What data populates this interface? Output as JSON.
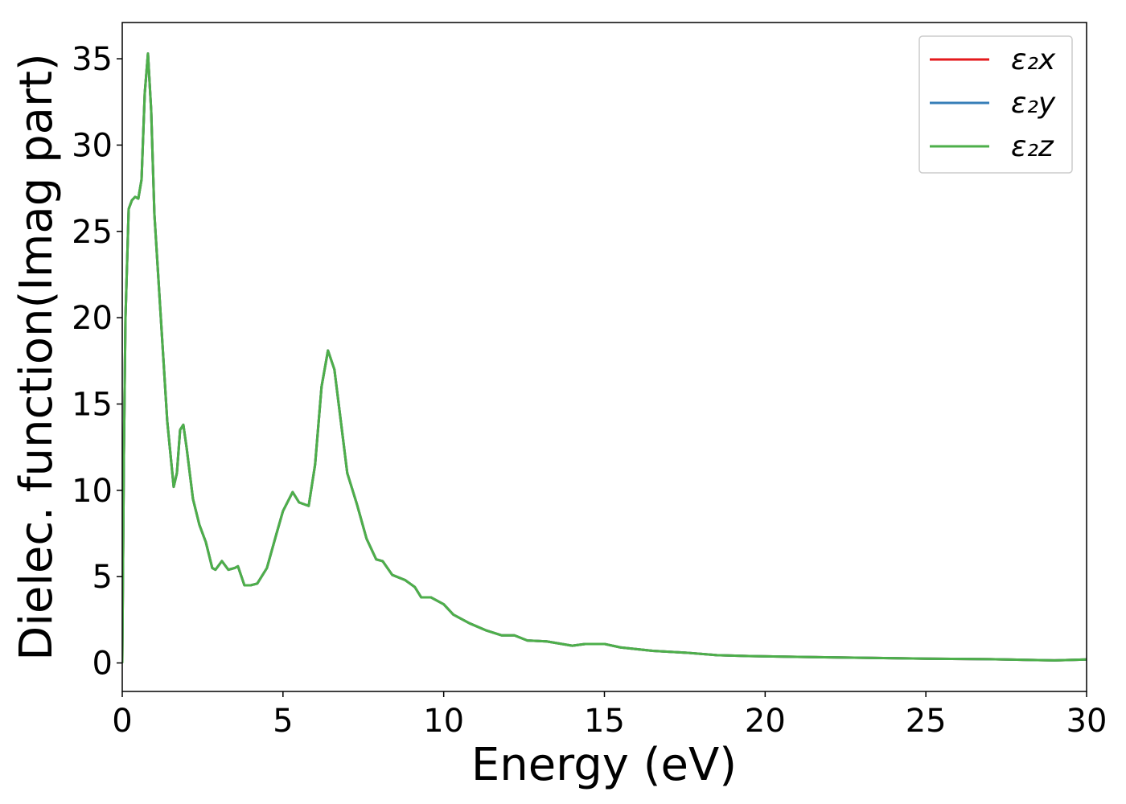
{
  "chart_data": {
    "type": "line",
    "x_label": "Energy (eV)",
    "y_label": "Dielec. function(Imag part)",
    "x": [
      0,
      0.05,
      0.1,
      0.2,
      0.3,
      0.4,
      0.5,
      0.6,
      0.7,
      0.8,
      0.9,
      1.0,
      1.2,
      1.4,
      1.6,
      1.7,
      1.8,
      1.9,
      2.0,
      2.2,
      2.4,
      2.6,
      2.8,
      2.9,
      3.1,
      3.3,
      3.5,
      3.6,
      3.8,
      4.0,
      4.2,
      4.5,
      4.8,
      5.0,
      5.3,
      5.5,
      5.8,
      6.0,
      6.2,
      6.4,
      6.6,
      6.8,
      7.0,
      7.3,
      7.6,
      7.9,
      8.1,
      8.4,
      8.8,
      9.1,
      9.3,
      9.6,
      10.0,
      10.3,
      10.8,
      11.3,
      11.8,
      12.2,
      12.6,
      13.2,
      14.0,
      14.4,
      15.0,
      15.5,
      16.5,
      17.5,
      18.5,
      19.5,
      21,
      23,
      25,
      27,
      29,
      30
    ],
    "series": [
      {
        "name": "ε₂x",
        "color": "#e41a1c",
        "values": [
          0,
          12,
          20,
          26.3,
          26.8,
          27,
          26.9,
          28,
          33,
          35.3,
          32,
          26,
          20,
          14,
          10.2,
          11,
          13.5,
          13.8,
          12.5,
          9.5,
          8,
          7,
          5.5,
          5.4,
          5.9,
          5.4,
          5.5,
          5.6,
          4.5,
          4.5,
          4.6,
          5.5,
          7.5,
          8.8,
          9.9,
          9.3,
          9.1,
          11.5,
          16,
          18.1,
          17,
          14,
          11,
          9.2,
          7.2,
          6,
          5.9,
          5.1,
          4.8,
          4.4,
          3.8,
          3.8,
          3.4,
          2.8,
          2.3,
          1.9,
          1.6,
          1.6,
          1.3,
          1.25,
          1.0,
          1.1,
          1.1,
          0.9,
          0.7,
          0.6,
          0.45,
          0.4,
          0.35,
          0.3,
          0.25,
          0.22,
          0.15,
          0.2
        ]
      },
      {
        "name": "ε₂y",
        "color": "#377eb8",
        "values": [
          0,
          12,
          20,
          26.3,
          26.8,
          27,
          26.9,
          28,
          33,
          35.3,
          32,
          26,
          20,
          14,
          10.2,
          11,
          13.5,
          13.8,
          12.5,
          9.5,
          8,
          7,
          5.5,
          5.4,
          5.9,
          5.4,
          5.5,
          5.6,
          4.5,
          4.5,
          4.6,
          5.5,
          7.5,
          8.8,
          9.9,
          9.3,
          9.1,
          11.5,
          16,
          18.1,
          17,
          14,
          11,
          9.2,
          7.2,
          6,
          5.9,
          5.1,
          4.8,
          4.4,
          3.8,
          3.8,
          3.4,
          2.8,
          2.3,
          1.9,
          1.6,
          1.6,
          1.3,
          1.25,
          1.0,
          1.1,
          1.1,
          0.9,
          0.7,
          0.6,
          0.45,
          0.4,
          0.35,
          0.3,
          0.25,
          0.22,
          0.15,
          0.2
        ]
      },
      {
        "name": "ε₂z",
        "color": "#4daf4a",
        "values": [
          0,
          12,
          20,
          26.3,
          26.8,
          27,
          26.9,
          28,
          33,
          35.3,
          32,
          26,
          20,
          14,
          10.2,
          11,
          13.5,
          13.8,
          12.5,
          9.5,
          8,
          7,
          5.5,
          5.4,
          5.9,
          5.4,
          5.5,
          5.6,
          4.5,
          4.5,
          4.6,
          5.5,
          7.5,
          8.8,
          9.9,
          9.3,
          9.1,
          11.5,
          16,
          18.1,
          17,
          14,
          11,
          9.2,
          7.2,
          6,
          5.9,
          5.1,
          4.8,
          4.4,
          3.8,
          3.8,
          3.4,
          2.8,
          2.3,
          1.9,
          1.6,
          1.6,
          1.3,
          1.25,
          1.0,
          1.1,
          1.1,
          0.9,
          0.7,
          0.6,
          0.45,
          0.4,
          0.35,
          0.3,
          0.25,
          0.22,
          0.15,
          0.2
        ]
      }
    ],
    "xlim": [
      0,
      30
    ],
    "xticks": [
      0,
      5,
      10,
      15,
      20,
      25,
      30
    ],
    "ylim": [
      -1.65,
      37.1
    ],
    "yticks": [
      0,
      5,
      10,
      15,
      20,
      25,
      30,
      35
    ],
    "legend": "upper right"
  }
}
